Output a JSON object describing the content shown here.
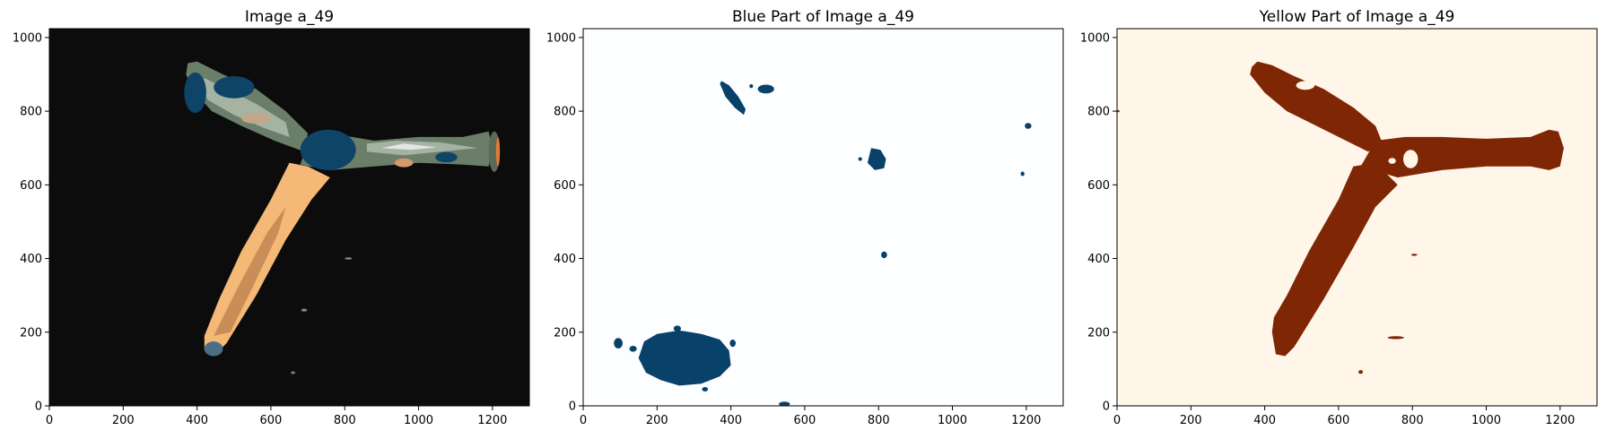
{
  "chart_data": [
    {
      "type": "image",
      "title": "Image a_49",
      "xticks": [
        0,
        200,
        400,
        600,
        800,
        1000,
        1200
      ],
      "yticks": [
        0,
        200,
        400,
        600,
        800,
        1000
      ],
      "xlim": [
        0,
        1300
      ],
      "ylim": [
        1024,
        0
      ],
      "background": "#0d0c0c",
      "colors": {
        "peach": "#f4b977",
        "tan": "#c98d57",
        "sage": "#6b7e6a",
        "light_sage": "#a5b3a2",
        "blue": "#0d4468",
        "pale": "#e4e7e1",
        "orange": "#e57c33"
      }
    },
    {
      "type": "image",
      "title": "Blue Part of Image a_49",
      "xticks": [
        0,
        200,
        400,
        600,
        800,
        1000,
        1200
      ],
      "yticks": [
        0,
        200,
        400,
        600,
        800,
        1000
      ],
      "xlim": [
        0,
        1300
      ],
      "ylim": [
        1024,
        0
      ],
      "background": "#fdfeff",
      "colors": {
        "mask": "#08416a"
      }
    },
    {
      "type": "image",
      "title": "Yellow Part of Image a_49",
      "xticks": [
        0,
        200,
        400,
        600,
        800,
        1000,
        1200
      ],
      "yticks": [
        0,
        200,
        400,
        600,
        800,
        1000
      ],
      "xlim": [
        0,
        1300
      ],
      "ylim": [
        1024,
        0
      ],
      "background": "#fff5e9",
      "colors": {
        "mask": "#7f2704"
      }
    }
  ]
}
